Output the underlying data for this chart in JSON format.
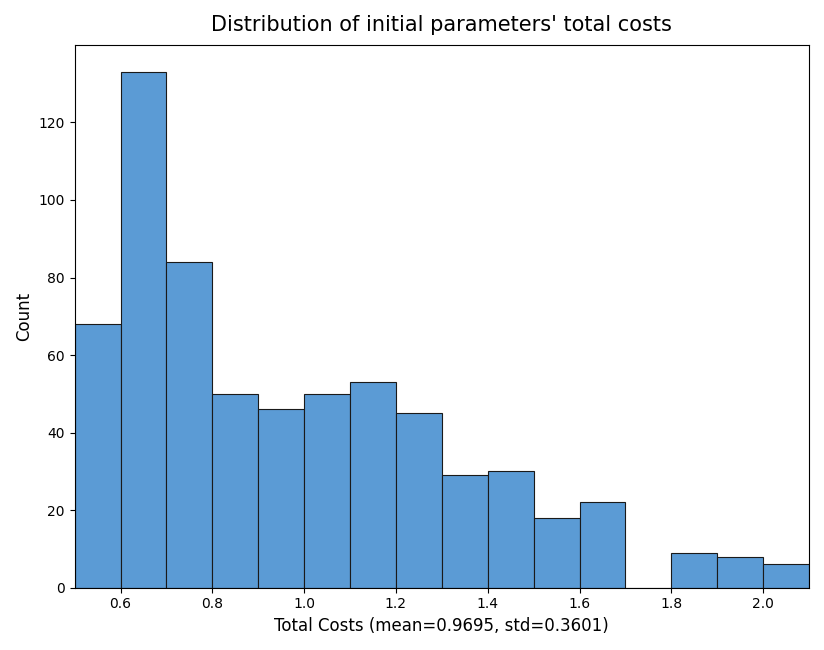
{
  "title": "Distribution of initial parameters' total costs",
  "xlabel": "Total Costs (mean=0.9695, std=0.3601)",
  "ylabel": "Count",
  "bar_color": "#5B9BD5",
  "bar_edgecolor": "#1a1a1a",
  "bin_edges": [
    0.5,
    0.6,
    0.7,
    0.8,
    0.9,
    1.0,
    1.1,
    1.2,
    1.3,
    1.4,
    1.5,
    1.6,
    1.7,
    1.8,
    1.9,
    2.0,
    2.1
  ],
  "counts": [
    68,
    133,
    84,
    50,
    46,
    50,
    53,
    45,
    29,
    30,
    18,
    22,
    0,
    9,
    8,
    6
  ],
  "xlim": [
    0.5,
    2.1
  ],
  "ylim": [
    0,
    140
  ],
  "yticks": [
    0,
    20,
    40,
    60,
    80,
    100,
    120
  ],
  "xticks": [
    0.6,
    0.8,
    1.0,
    1.2,
    1.4,
    1.6,
    1.8,
    2.0
  ],
  "figsize": [
    8.24,
    6.5
  ],
  "dpi": 100,
  "title_fontsize": 15,
  "label_fontsize": 12
}
